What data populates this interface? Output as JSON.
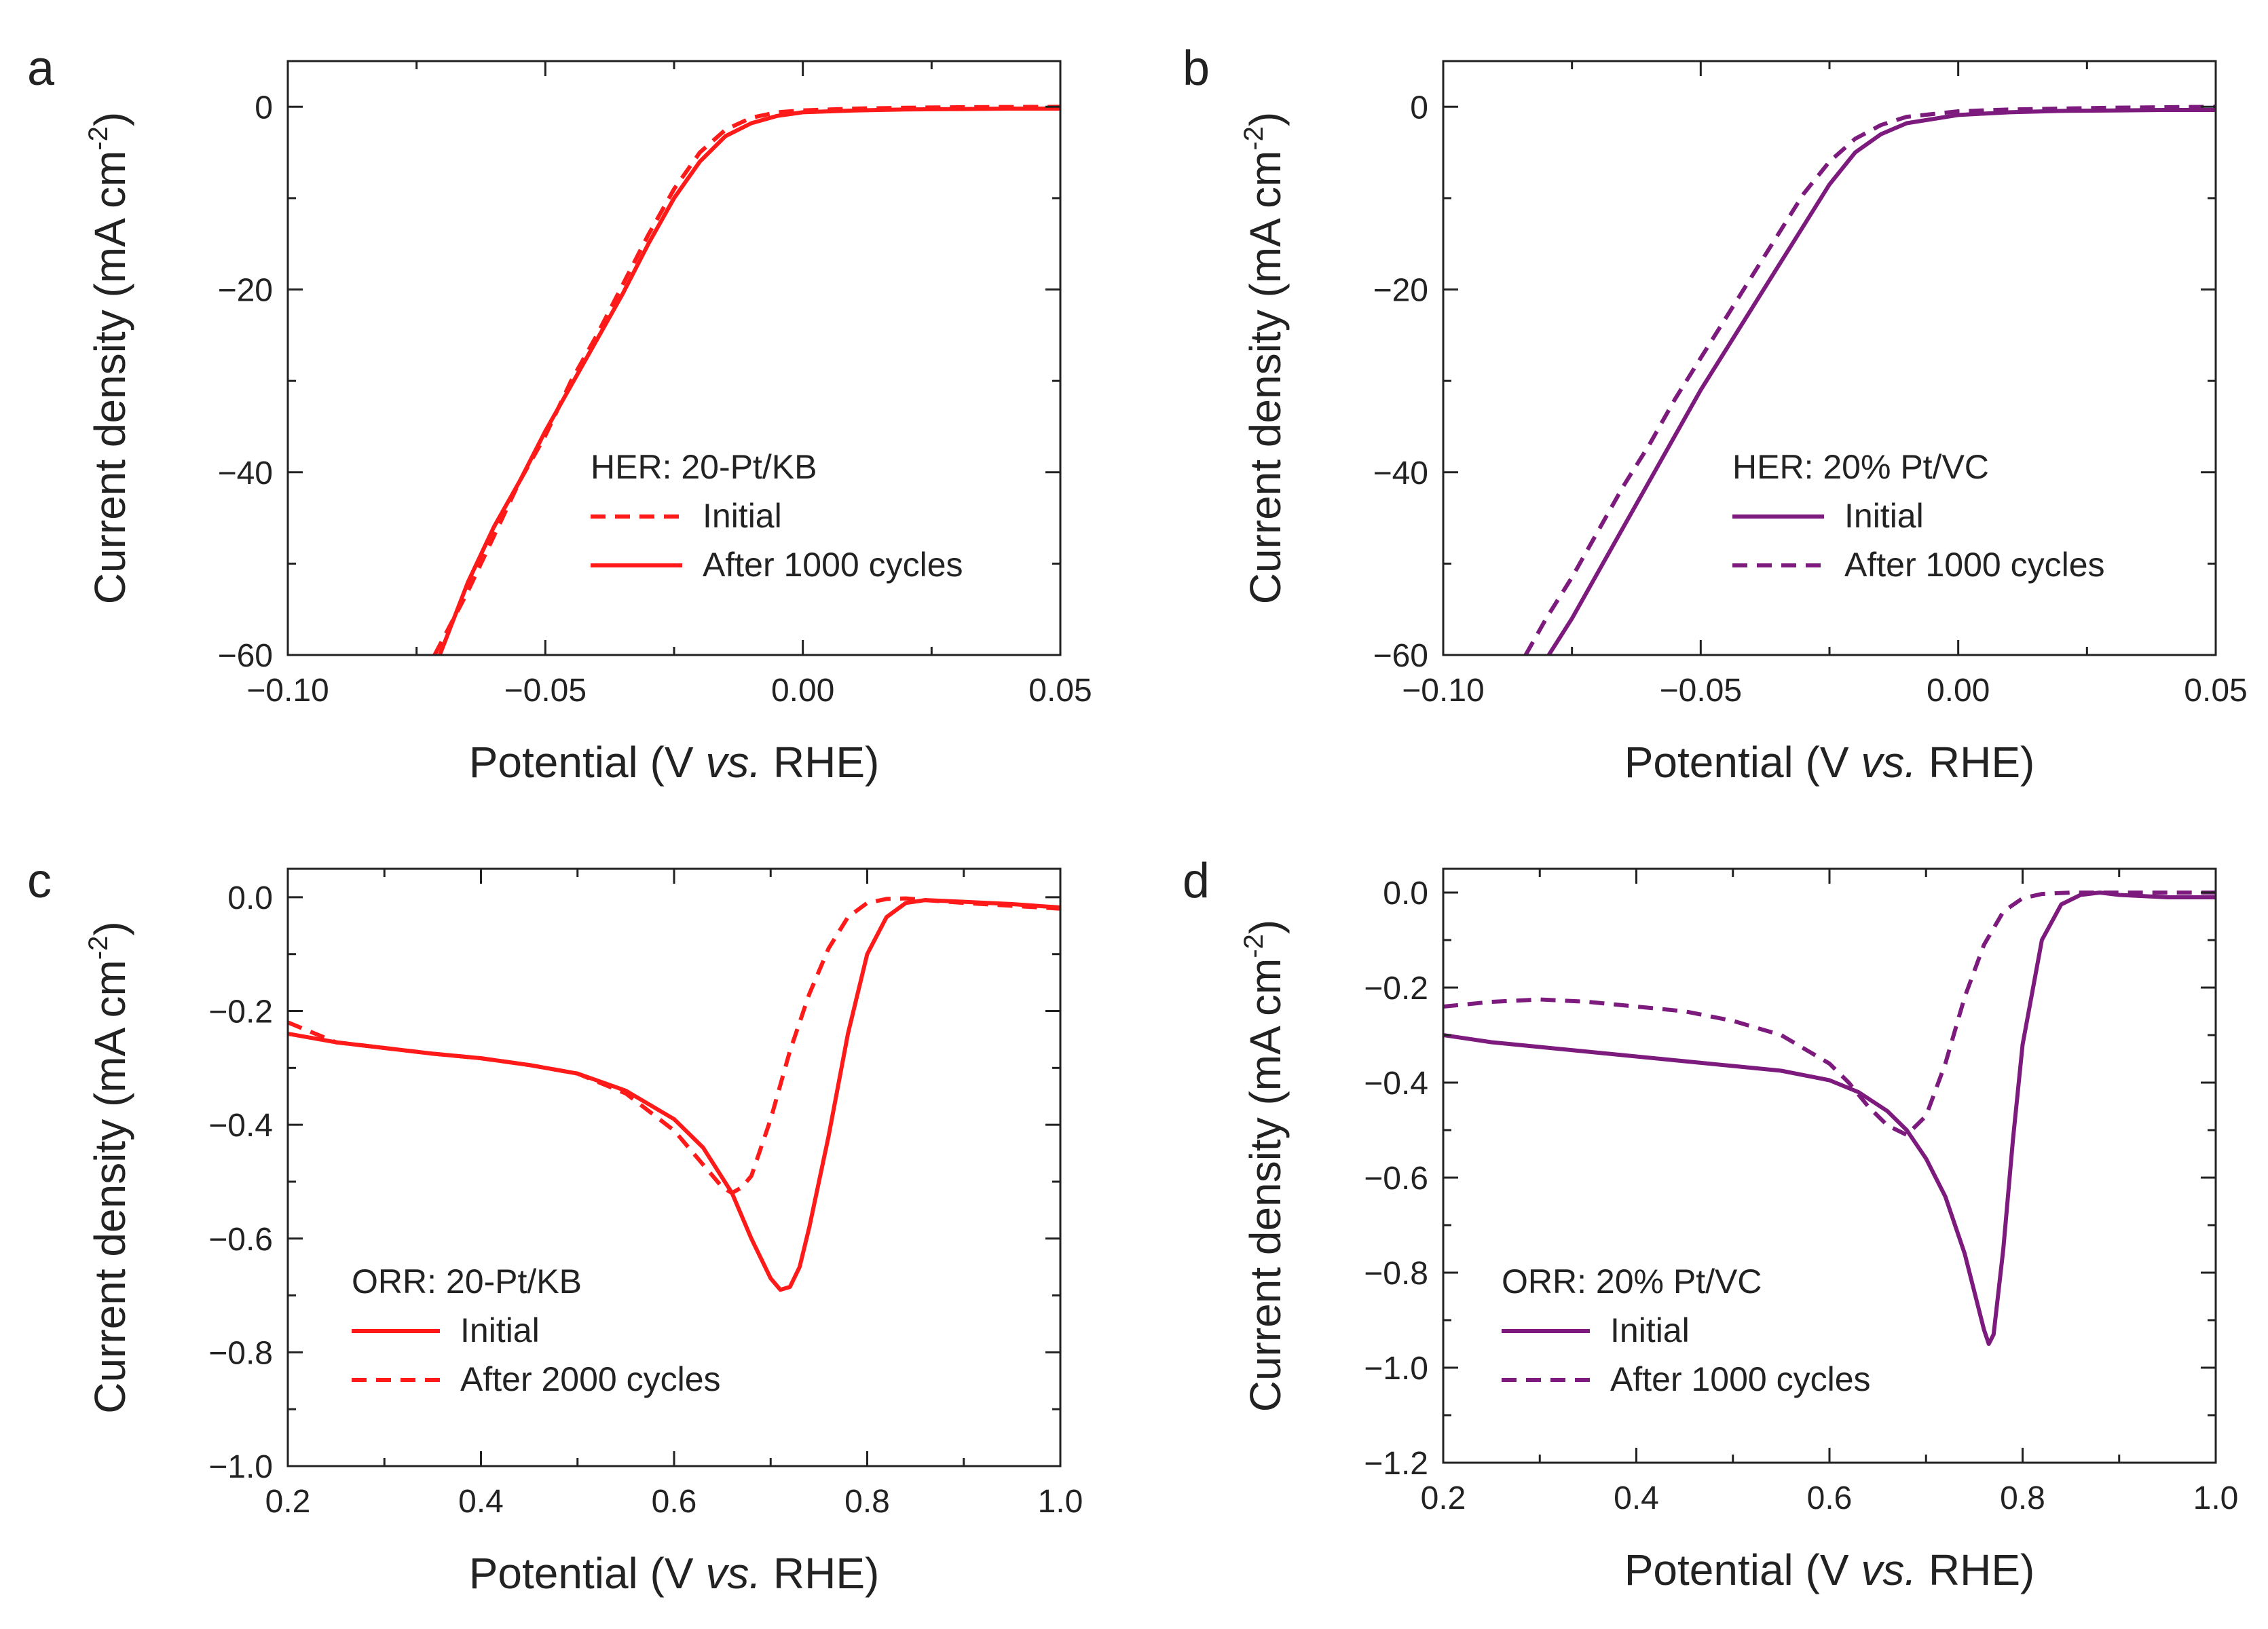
{
  "chart_data": [
    {
      "panel": "a",
      "type": "line",
      "xlabel": "Potential (V vs. RHE)",
      "ylabel": "Current density (mA cm-2)",
      "xlim": [
        -0.1,
        0.05
      ],
      "ylim": [
        -60,
        5
      ],
      "xticks": [
        -0.1,
        -0.05,
        0.0,
        0.05
      ],
      "xtick_labels": [
        "-0.10",
        "-0.05",
        "0.00",
        "0.05"
      ],
      "yticks": [
        0,
        -20,
        -40,
        -60
      ],
      "ytick_labels": [
        "0",
        "-20",
        "-40",
        "-60"
      ],
      "legend_title": "HER: 20-Pt/KB",
      "legend_position": "center-right",
      "grid": false,
      "series": [
        {
          "name": "Initial",
          "color": "#ff1a1a",
          "dash": "dashed",
          "x": [
            -0.0715,
            -0.065,
            -0.06,
            -0.055,
            -0.05,
            -0.045,
            -0.04,
            -0.035,
            -0.03,
            -0.025,
            -0.02,
            -0.015,
            -0.01,
            -0.005,
            0.0,
            0.01,
            0.02,
            0.03,
            0.04,
            0.05
          ],
          "y": [
            -60,
            -53,
            -47,
            -41,
            -36,
            -30,
            -25,
            -19.5,
            -14,
            -9,
            -5,
            -2.5,
            -1.2,
            -0.6,
            -0.4,
            -0.2,
            -0.1,
            -0.05,
            -0.02,
            -0.01
          ]
        },
        {
          "name": "After 1000 cycles",
          "color": "#ff1a1a",
          "dash": "solid",
          "x": [
            -0.0705,
            -0.065,
            -0.06,
            -0.055,
            -0.05,
            -0.045,
            -0.04,
            -0.035,
            -0.03,
            -0.025,
            -0.02,
            -0.015,
            -0.01,
            -0.005,
            0.0,
            0.01,
            0.02,
            0.03,
            0.04,
            0.05
          ],
          "y": [
            -60,
            -52,
            -46,
            -41,
            -35.5,
            -30.5,
            -25.5,
            -20.5,
            -15,
            -10,
            -6,
            -3.2,
            -1.8,
            -1,
            -0.6,
            -0.4,
            -0.3,
            -0.25,
            -0.2,
            -0.2
          ]
        }
      ]
    },
    {
      "panel": "b",
      "type": "line",
      "xlabel": "Potential (V vs. RHE)",
      "ylabel": "Current density (mA cm-2)",
      "xlim": [
        -0.1,
        0.05
      ],
      "ylim": [
        -60,
        5
      ],
      "xticks": [
        -0.1,
        -0.05,
        0.0,
        0.05
      ],
      "xtick_labels": [
        "-0.10",
        "-0.05",
        "0.00",
        "0.05"
      ],
      "yticks": [
        0,
        -20,
        -40,
        -60
      ],
      "ytick_labels": [
        "0",
        "-20",
        "-40",
        "-60"
      ],
      "legend_title": "HER: 20% Pt/VC",
      "legend_position": "center-right",
      "grid": false,
      "series": [
        {
          "name": "Initial",
          "color": "#7d1a7d",
          "dash": "solid",
          "x": [
            -0.0795,
            -0.075,
            -0.07,
            -0.065,
            -0.06,
            -0.055,
            -0.05,
            -0.045,
            -0.04,
            -0.035,
            -0.03,
            -0.025,
            -0.02,
            -0.015,
            -0.01,
            0.0,
            0.01,
            0.02,
            0.03,
            0.04,
            0.05
          ],
          "y": [
            -60,
            -56,
            -51,
            -46,
            -41,
            -36,
            -31,
            -26.5,
            -22,
            -17.5,
            -13,
            -8.5,
            -5,
            -3,
            -1.8,
            -0.9,
            -0.6,
            -0.45,
            -0.4,
            -0.35,
            -0.35
          ]
        },
        {
          "name": "After 1000 cycles",
          "color": "#7d1a7d",
          "dash": "dashed",
          "x": [
            -0.084,
            -0.08,
            -0.075,
            -0.07,
            -0.065,
            -0.06,
            -0.055,
            -0.05,
            -0.045,
            -0.04,
            -0.035,
            -0.03,
            -0.025,
            -0.02,
            -0.015,
            -0.01,
            0.0,
            0.01,
            0.02,
            0.03,
            0.04,
            0.05
          ],
          "y": [
            -60,
            -56,
            -51.5,
            -46.5,
            -41.5,
            -37,
            -32,
            -27.5,
            -23,
            -18.5,
            -14,
            -9.5,
            -6,
            -3.5,
            -2,
            -1.1,
            -0.5,
            -0.3,
            -0.2,
            -0.1,
            -0.05,
            0.0
          ]
        }
      ]
    },
    {
      "panel": "c",
      "type": "line",
      "xlabel": "Potential (V vs. RHE)",
      "ylabel": "Current density (mA cm-2)",
      "xlim": [
        0.2,
        1.0
      ],
      "ylim": [
        -1.0,
        0.05
      ],
      "xticks": [
        0.2,
        0.4,
        0.6,
        0.8,
        1.0
      ],
      "xtick_labels": [
        "0.2",
        "0.4",
        "0.6",
        "0.8",
        "1.0"
      ],
      "yticks": [
        0.0,
        -0.2,
        -0.4,
        -0.6,
        -0.8,
        -1.0
      ],
      "ytick_labels": [
        "0.0",
        "-0.2",
        "-0.4",
        "-0.6",
        "-0.8",
        "-1.0"
      ],
      "legend_title": "ORR: 20-Pt/KB",
      "legend_position": "bottom-left",
      "grid": false,
      "series": [
        {
          "name": "Initial",
          "color": "#ff1a1a",
          "dash": "solid",
          "x": [
            0.2,
            0.25,
            0.3,
            0.35,
            0.4,
            0.45,
            0.5,
            0.55,
            0.6,
            0.63,
            0.66,
            0.68,
            0.7,
            0.71,
            0.72,
            0.73,
            0.74,
            0.76,
            0.78,
            0.8,
            0.82,
            0.84,
            0.86,
            0.9,
            0.95,
            1.0
          ],
          "y": [
            -0.24,
            -0.255,
            -0.265,
            -0.275,
            -0.283,
            -0.295,
            -0.31,
            -0.34,
            -0.39,
            -0.44,
            -0.52,
            -0.6,
            -0.67,
            -0.69,
            -0.685,
            -0.65,
            -0.58,
            -0.42,
            -0.24,
            -0.1,
            -0.035,
            -0.01,
            -0.005,
            -0.008,
            -0.012,
            -0.018
          ]
        },
        {
          "name": "After 2000 cycles",
          "color": "#ff1a1a",
          "dash": "dashed",
          "x": [
            0.2,
            0.25,
            0.3,
            0.35,
            0.4,
            0.45,
            0.5,
            0.55,
            0.6,
            0.63,
            0.65,
            0.66,
            0.67,
            0.68,
            0.7,
            0.72,
            0.74,
            0.76,
            0.78,
            0.8,
            0.82,
            0.84,
            0.86,
            0.9,
            0.95,
            1.0
          ],
          "y": [
            -0.22,
            -0.255,
            -0.265,
            -0.275,
            -0.283,
            -0.295,
            -0.31,
            -0.345,
            -0.41,
            -0.47,
            -0.51,
            -0.52,
            -0.51,
            -0.49,
            -0.39,
            -0.27,
            -0.17,
            -0.09,
            -0.035,
            -0.01,
            -0.003,
            -0.002,
            -0.005,
            -0.01,
            -0.015,
            -0.02
          ]
        }
      ]
    },
    {
      "panel": "d",
      "type": "line",
      "xlabel": "Potential (V vs. RHE)",
      "ylabel": "Current density (mA cm-2)",
      "xlim": [
        0.2,
        1.0
      ],
      "ylim": [
        -1.2,
        0.05
      ],
      "xticks": [
        0.2,
        0.4,
        0.6,
        0.8,
        1.0
      ],
      "xtick_labels": [
        "0.2",
        "0.4",
        "0.6",
        "0.8",
        "1.0"
      ],
      "yticks": [
        0.0,
        -0.2,
        -0.4,
        -0.6,
        -0.8,
        -1.0,
        -1.2
      ],
      "ytick_labels": [
        "0.0",
        "-0.2",
        "-0.4",
        "-0.6",
        "-0.8",
        "-1.0",
        "-1.2"
      ],
      "legend_title": "ORR: 20% Pt/VC",
      "legend_position": "bottom-left",
      "grid": false,
      "series": [
        {
          "name": "Initial",
          "color": "#7d1a7d",
          "dash": "solid",
          "x": [
            0.2,
            0.25,
            0.3,
            0.35,
            0.4,
            0.45,
            0.5,
            0.55,
            0.6,
            0.63,
            0.66,
            0.68,
            0.7,
            0.72,
            0.74,
            0.75,
            0.76,
            0.765,
            0.77,
            0.78,
            0.79,
            0.8,
            0.82,
            0.84,
            0.86,
            0.88,
            0.9,
            0.95,
            1.0
          ],
          "y": [
            -0.3,
            -0.315,
            -0.325,
            -0.335,
            -0.345,
            -0.355,
            -0.365,
            -0.375,
            -0.395,
            -0.42,
            -0.46,
            -0.5,
            -0.56,
            -0.64,
            -0.76,
            -0.84,
            -0.92,
            -0.95,
            -0.93,
            -0.75,
            -0.52,
            -0.32,
            -0.1,
            -0.025,
            -0.005,
            0.0,
            -0.005,
            -0.01,
            -0.01
          ]
        },
        {
          "name": "After 1000 cycles",
          "color": "#7d1a7d",
          "dash": "dashed",
          "x": [
            0.2,
            0.25,
            0.3,
            0.35,
            0.4,
            0.45,
            0.5,
            0.55,
            0.6,
            0.62,
            0.64,
            0.66,
            0.68,
            0.7,
            0.72,
            0.74,
            0.76,
            0.78,
            0.8,
            0.82,
            0.85,
            0.9,
            0.95,
            1.0
          ],
          "y": [
            -0.24,
            -0.23,
            -0.225,
            -0.23,
            -0.24,
            -0.25,
            -0.27,
            -0.3,
            -0.36,
            -0.4,
            -0.45,
            -0.49,
            -0.51,
            -0.47,
            -0.36,
            -0.22,
            -0.11,
            -0.04,
            -0.012,
            -0.003,
            0.0,
            0.0,
            0.0,
            0.0
          ]
        }
      ]
    }
  ]
}
